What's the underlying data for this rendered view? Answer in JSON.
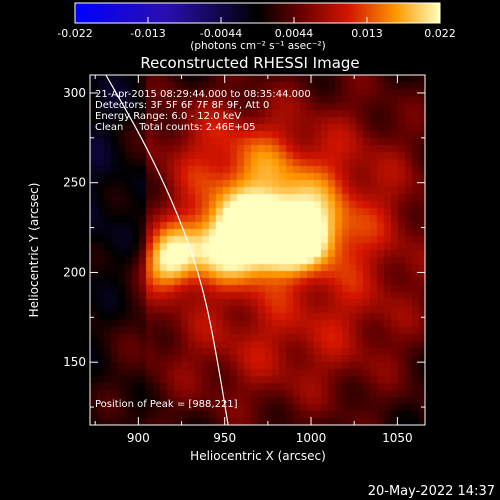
{
  "chart_data": {
    "type": "heatmap",
    "title": "Reconstructed RHESSI Image",
    "xlabel": "Heliocentric X (arcsec)",
    "ylabel": "Heliocentric Y (arcsec)",
    "xlim": [
      872,
      1066
    ],
    "ylim": [
      115,
      310
    ],
    "x_ticks": [
      900,
      950,
      1000,
      1050
    ],
    "y_ticks": [
      150,
      200,
      250,
      300
    ],
    "colorbar": {
      "range": [
        -0.022,
        0.022
      ],
      "ticks": [
        "-0.022",
        "-0.013",
        "-0.0044",
        "0.0044",
        "0.013",
        "0.022"
      ],
      "unit_label": "(photons cm⁻² s⁻¹ asec⁻²)"
    },
    "annotations": [
      "21-Apr-2015 08:29:44.000 to 08:35:44.000",
      "Detectors: 3F 5F 6F 7F 8F 9F, Att 0",
      "Energy Range: 6.0 - 12.0 keV",
      "Clean     Total counts: 2.46E+05"
    ],
    "peak_label": "Position of Peak = [988,221]",
    "peak": [
      988,
      221
    ],
    "sources": [
      {
        "x": 985,
        "y": 221,
        "sx": 20,
        "sy": 13,
        "amp": 0.022
      },
      {
        "x": 952,
        "y": 216,
        "sx": 22,
        "sy": 15,
        "amp": 0.015
      },
      {
        "x": 918,
        "y": 206,
        "sx": 11,
        "sy": 11,
        "amp": 0.015
      },
      {
        "x": 975,
        "y": 244,
        "sx": 28,
        "sy": 20,
        "amp": 0.009
      },
      {
        "x": 950,
        "y": 272,
        "sx": 34,
        "sy": 22,
        "amp": 0.006
      },
      {
        "x": 1030,
        "y": 230,
        "sx": 35,
        "sy": 55,
        "amp": 0.006
      },
      {
        "x": 970,
        "y": 160,
        "sx": 50,
        "sy": 30,
        "amp": 0.005
      },
      {
        "x": 960,
        "y": 210,
        "sx": 90,
        "sy": 80,
        "amp": 0.004
      }
    ],
    "limb_curve": [
      [
        880,
        312
      ],
      [
        905,
        270
      ],
      [
        925,
        228
      ],
      [
        938,
        190
      ],
      [
        946,
        150
      ],
      [
        952,
        115
      ]
    ],
    "timestamp": "20-May-2022 14:37"
  }
}
